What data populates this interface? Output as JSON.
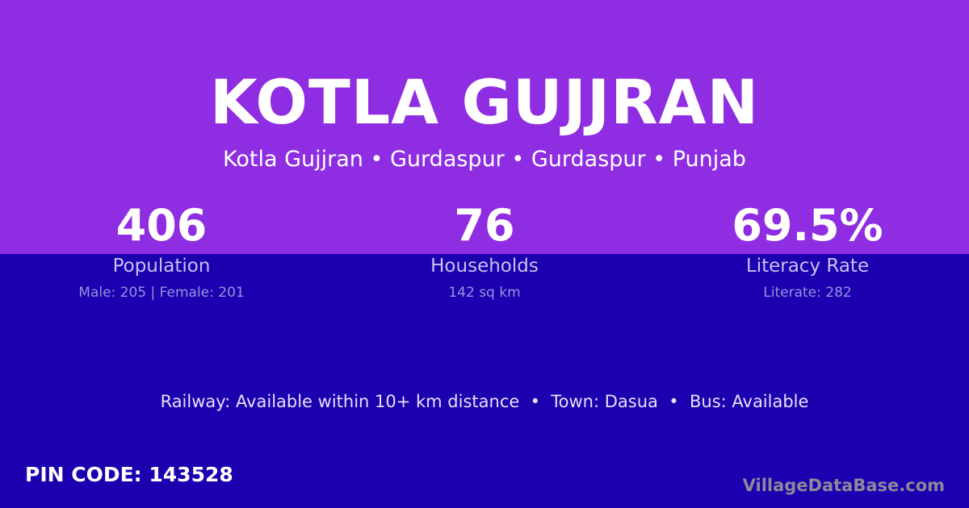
{
  "colors": {
    "header_bg": "#8e2de2",
    "body_bg": "#1a00ae"
  },
  "title": "KOTLA GUJJRAN",
  "subtitle": "Kotla Gujjran • Gurdaspur • Gurdaspur • Punjab",
  "stats": [
    {
      "value": "406",
      "label": "Population",
      "sub": "Male: 205 | Female: 201"
    },
    {
      "value": "76",
      "label": "Households",
      "sub": "142 sq km"
    },
    {
      "value": "69.5%",
      "label": "Literacy Rate",
      "sub": "Literate: 282"
    }
  ],
  "facilities": "Railway: Available within 10+ km distance  •  Town: Dasua  •  Bus: Available",
  "pin_code": "PIN CODE: 143528",
  "brand": "VillageDataBase.com"
}
